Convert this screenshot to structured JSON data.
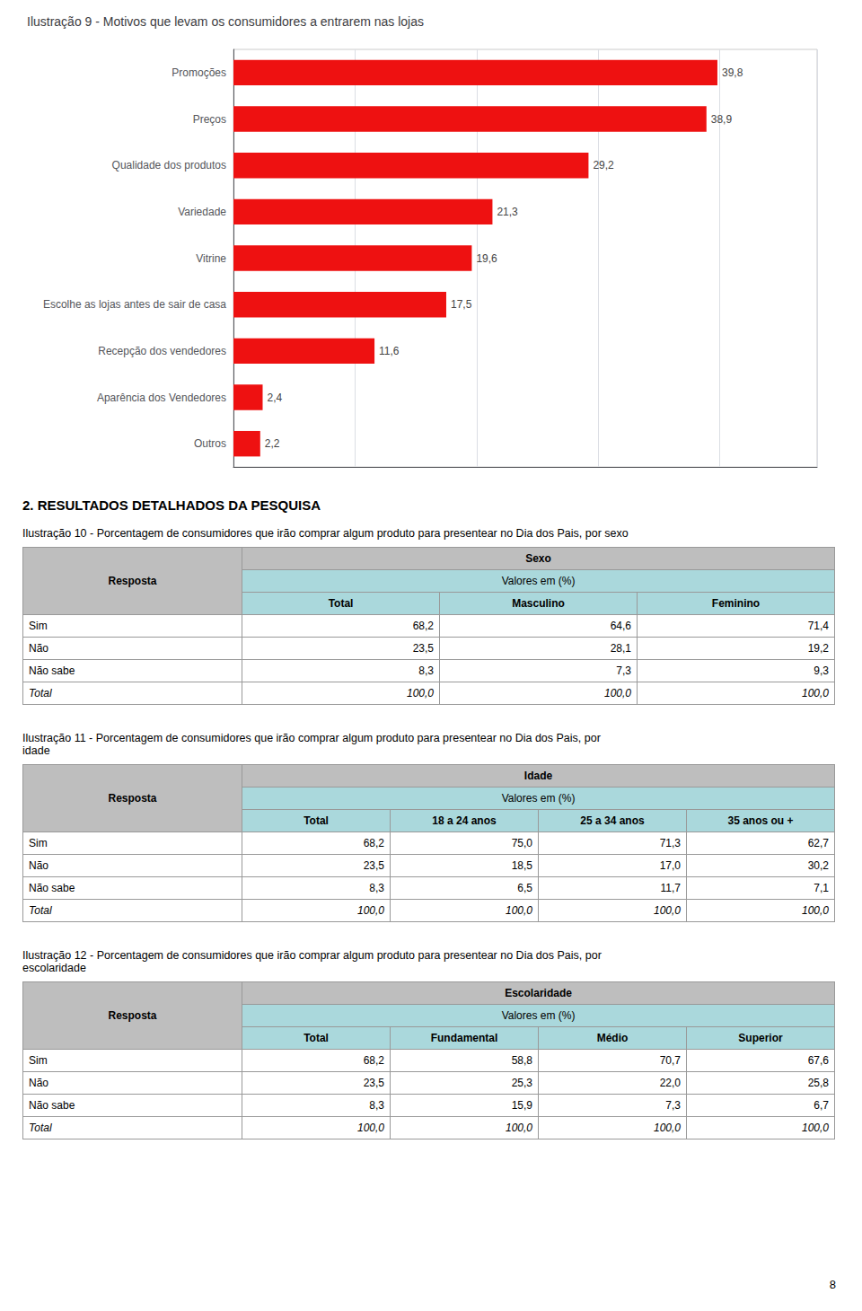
{
  "chart_data": [
    {
      "type": "bar",
      "title": "Ilustração 9 - Motivos que levam os consumidores a entrarem nas lojas",
      "orientation": "horizontal",
      "categories": [
        "Promoções",
        "Preços",
        "Qualidade dos produtos",
        "Variedade",
        "Vitrine",
        "Escolhe as lojas antes de sair de casa",
        "Recepção dos vendedores",
        "Aparência dos Vendedores",
        "Outros"
      ],
      "values": [
        39.8,
        38.9,
        29.2,
        21.3,
        19.6,
        17.5,
        11.6,
        2.4,
        2.2
      ],
      "value_labels": [
        "39,8",
        "38,9",
        "29,2",
        "21,3",
        "19,6",
        "17,5",
        "11,6",
        "2,4",
        "2,2"
      ],
      "data_labels": true,
      "color": "#EE1111",
      "xlim": [
        0,
        48
      ],
      "xticks": [
        0,
        10,
        20,
        30,
        40
      ],
      "grid": true,
      "tick_labels": "y"
    },
    {
      "type": "table",
      "title": "Ilustração 10 - Porcentagem de consumidores que irão comprar algum produto para presentear no Dia dos Pais, por sexo",
      "row_header": "Resposta",
      "group_header": "Sexo",
      "unit_header": "Valores em (%)",
      "columns": [
        "Total",
        "Masculino",
        "Feminino"
      ],
      "rows": [
        [
          "Sim",
          "68,2",
          "64,6",
          "71,4"
        ],
        [
          "Não",
          "23,5",
          "28,1",
          "19,2"
        ],
        [
          "Não sabe",
          "8,3",
          "7,3",
          "9,3"
        ],
        [
          "Total",
          "100,0",
          "100,0",
          "100,0"
        ]
      ],
      "colors": {
        "header": "#BEBEBE",
        "subheader": "#AAD8DC",
        "border": "#999999"
      }
    },
    {
      "type": "table",
      "title": "Ilustração 11 - Porcentagem de consumidores que irão comprar algum produto para presentear no Dia dos Pais, por\nidade",
      "row_header": "Resposta",
      "group_header": "Idade",
      "unit_header": "Valores em (%)",
      "columns": [
        "Total",
        "18 a 24 anos",
        "25 a 34 anos",
        "35 anos ou +"
      ],
      "rows": [
        [
          "Sim",
          "68,2",
          "75,0",
          "71,3",
          "62,7"
        ],
        [
          "Não",
          "23,5",
          "18,5",
          "17,0",
          "30,2"
        ],
        [
          "Não sabe",
          "8,3",
          "6,5",
          "11,7",
          "7,1"
        ],
        [
          "Total",
          "100,0",
          "100,0",
          "100,0",
          "100,0"
        ]
      ],
      "colors": {
        "header": "#BEBEBE",
        "subheader": "#AAD8DC",
        "border": "#999999"
      }
    },
    {
      "type": "table",
      "title": "Ilustração 12 - Porcentagem de consumidores que irão comprar algum produto para presentear no Dia dos Pais, por\nescolaridade",
      "row_header": "Resposta",
      "group_header": "Escolaridade",
      "unit_header": "Valores em (%)",
      "columns": [
        "Total",
        "Fundamental",
        "Médio",
        "Superior"
      ],
      "rows": [
        [
          "Sim",
          "68,2",
          "58,8",
          "70,7",
          "67,6"
        ],
        [
          "Não",
          "23,5",
          "25,3",
          "22,0",
          "25,8"
        ],
        [
          "Não sabe",
          "8,3",
          "15,9",
          "7,3",
          "6,7"
        ],
        [
          "Total",
          "100,0",
          "100,0",
          "100,0",
          "100,0"
        ]
      ],
      "colors": {
        "header": "#BEBEBE",
        "subheader": "#AAD8DC",
        "border": "#999999"
      }
    }
  ],
  "annotations": [
    "2. RESULTADOS DETALHADOS DA PESQUISA",
    "8"
  ]
}
